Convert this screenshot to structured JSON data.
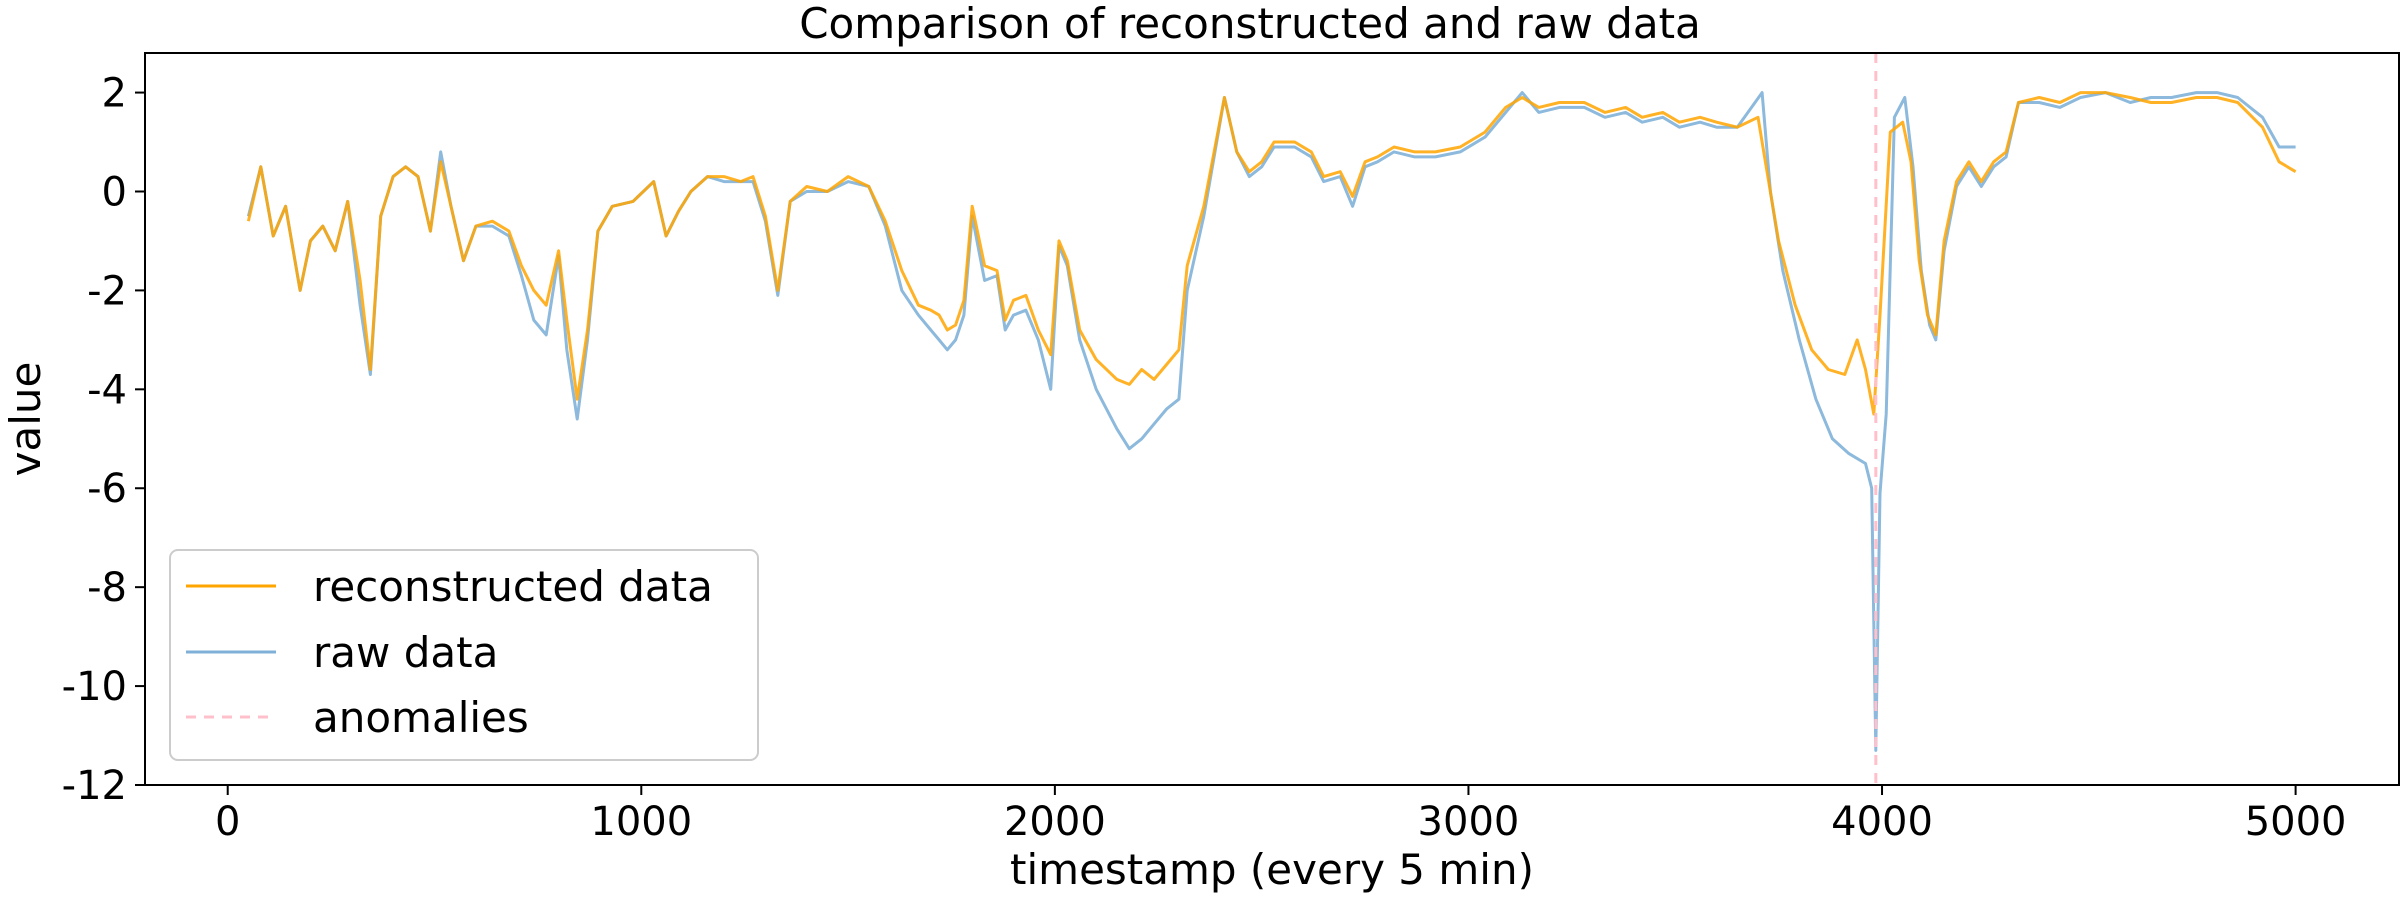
{
  "chart_data": {
    "type": "line",
    "title": "Comparison of reconstructed and raw data",
    "xlabel": "timestamp (every 5 min)",
    "ylabel": "value",
    "xlim": [
      -200,
      5250
    ],
    "ylim": [
      -12,
      2.8
    ],
    "x_ticks": [
      0,
      1000,
      2000,
      3000,
      4000,
      5000
    ],
    "x_tick_labels": [
      "0",
      "1000",
      "2000",
      "3000",
      "4000",
      "5000"
    ],
    "y_ticks": [
      2,
      0,
      -2,
      -4,
      -6,
      -8,
      -10,
      -12
    ],
    "y_tick_labels": [
      "2",
      "0",
      "-2",
      "-4",
      "-6",
      "-8",
      "-10",
      "-12"
    ],
    "grid": false,
    "legend_position": "lower-left",
    "series": [
      {
        "name": "reconstructed data",
        "color": "#ffa500",
        "style": "solid",
        "points": [
          [
            50,
            -0.6
          ],
          [
            80,
            0.5
          ],
          [
            110,
            -0.9
          ],
          [
            140,
            -0.3
          ],
          [
            175,
            -2.0
          ],
          [
            200,
            -1.0
          ],
          [
            230,
            -0.7
          ],
          [
            260,
            -1.2
          ],
          [
            290,
            -0.2
          ],
          [
            320,
            -1.8
          ],
          [
            345,
            -3.6
          ],
          [
            370,
            -0.5
          ],
          [
            400,
            0.3
          ],
          [
            430,
            0.5
          ],
          [
            460,
            0.3
          ],
          [
            490,
            -0.8
          ],
          [
            515,
            0.6
          ],
          [
            540,
            -0.3
          ],
          [
            570,
            -1.4
          ],
          [
            600,
            -0.7
          ],
          [
            640,
            -0.6
          ],
          [
            680,
            -0.8
          ],
          [
            710,
            -1.5
          ],
          [
            740,
            -2.0
          ],
          [
            770,
            -2.3
          ],
          [
            800,
            -1.2
          ],
          [
            820,
            -2.6
          ],
          [
            845,
            -4.2
          ],
          [
            870,
            -2.8
          ],
          [
            895,
            -0.8
          ],
          [
            930,
            -0.3
          ],
          [
            980,
            -0.2
          ],
          [
            1030,
            0.2
          ],
          [
            1060,
            -0.9
          ],
          [
            1090,
            -0.4
          ],
          [
            1120,
            0.0
          ],
          [
            1160,
            0.3
          ],
          [
            1200,
            0.3
          ],
          [
            1240,
            0.2
          ],
          [
            1270,
            0.3
          ],
          [
            1300,
            -0.5
          ],
          [
            1330,
            -2.0
          ],
          [
            1360,
            -0.2
          ],
          [
            1400,
            0.1
          ],
          [
            1450,
            0.0
          ],
          [
            1500,
            0.3
          ],
          [
            1550,
            0.1
          ],
          [
            1590,
            -0.6
          ],
          [
            1630,
            -1.6
          ],
          [
            1670,
            -2.3
          ],
          [
            1700,
            -2.4
          ],
          [
            1720,
            -2.5
          ],
          [
            1740,
            -2.8
          ],
          [
            1760,
            -2.7
          ],
          [
            1780,
            -2.2
          ],
          [
            1800,
            -0.3
          ],
          [
            1830,
            -1.5
          ],
          [
            1860,
            -1.6
          ],
          [
            1880,
            -2.6
          ],
          [
            1900,
            -2.2
          ],
          [
            1930,
            -2.1
          ],
          [
            1960,
            -2.8
          ],
          [
            1990,
            -3.3
          ],
          [
            2010,
            -1.0
          ],
          [
            2030,
            -1.4
          ],
          [
            2060,
            -2.8
          ],
          [
            2100,
            -3.4
          ],
          [
            2150,
            -3.8
          ],
          [
            2180,
            -3.9
          ],
          [
            2210,
            -3.6
          ],
          [
            2240,
            -3.8
          ],
          [
            2270,
            -3.5
          ],
          [
            2300,
            -3.2
          ],
          [
            2320,
            -1.5
          ],
          [
            2360,
            -0.3
          ],
          [
            2410,
            1.9
          ],
          [
            2440,
            0.8
          ],
          [
            2470,
            0.4
          ],
          [
            2500,
            0.6
          ],
          [
            2530,
            1.0
          ],
          [
            2580,
            1.0
          ],
          [
            2620,
            0.8
          ],
          [
            2650,
            0.3
          ],
          [
            2690,
            0.4
          ],
          [
            2720,
            -0.1
          ],
          [
            2750,
            0.6
          ],
          [
            2780,
            0.7
          ],
          [
            2820,
            0.9
          ],
          [
            2870,
            0.8
          ],
          [
            2920,
            0.8
          ],
          [
            2980,
            0.9
          ],
          [
            3040,
            1.2
          ],
          [
            3090,
            1.7
          ],
          [
            3130,
            1.9
          ],
          [
            3170,
            1.7
          ],
          [
            3220,
            1.8
          ],
          [
            3280,
            1.8
          ],
          [
            3330,
            1.6
          ],
          [
            3380,
            1.7
          ],
          [
            3420,
            1.5
          ],
          [
            3470,
            1.6
          ],
          [
            3510,
            1.4
          ],
          [
            3560,
            1.5
          ],
          [
            3600,
            1.4
          ],
          [
            3650,
            1.3
          ],
          [
            3700,
            1.5
          ],
          [
            3720,
            0.5
          ],
          [
            3750,
            -1.0
          ],
          [
            3790,
            -2.3
          ],
          [
            3830,
            -3.2
          ],
          [
            3870,
            -3.6
          ],
          [
            3910,
            -3.7
          ],
          [
            3940,
            -3.0
          ],
          [
            3960,
            -3.6
          ],
          [
            3980,
            -4.5
          ],
          [
            3995,
            -2.5
          ],
          [
            4020,
            1.2
          ],
          [
            4050,
            1.4
          ],
          [
            4070,
            0.6
          ],
          [
            4090,
            -1.4
          ],
          [
            4110,
            -2.5
          ],
          [
            4130,
            -2.9
          ],
          [
            4150,
            -1.0
          ],
          [
            4180,
            0.2
          ],
          [
            4210,
            0.6
          ],
          [
            4240,
            0.2
          ],
          [
            4270,
            0.6
          ],
          [
            4300,
            0.8
          ],
          [
            4330,
            1.8
          ],
          [
            4380,
            1.9
          ],
          [
            4430,
            1.8
          ],
          [
            4480,
            2.0
          ],
          [
            4540,
            2.0
          ],
          [
            4600,
            1.9
          ],
          [
            4650,
            1.8
          ],
          [
            4700,
            1.8
          ],
          [
            4760,
            1.9
          ],
          [
            4810,
            1.9
          ],
          [
            4860,
            1.8
          ],
          [
            4920,
            1.3
          ],
          [
            4960,
            0.6
          ],
          [
            5000,
            0.4
          ]
        ]
      },
      {
        "name": "raw data",
        "color": "#7fb1d8",
        "style": "solid",
        "points": [
          [
            50,
            -0.5
          ],
          [
            80,
            0.5
          ],
          [
            110,
            -0.9
          ],
          [
            140,
            -0.3
          ],
          [
            175,
            -2.0
          ],
          [
            200,
            -1.0
          ],
          [
            230,
            -0.7
          ],
          [
            260,
            -1.2
          ],
          [
            290,
            -0.2
          ],
          [
            320,
            -2.3
          ],
          [
            345,
            -3.7
          ],
          [
            370,
            -0.5
          ],
          [
            400,
            0.3
          ],
          [
            430,
            0.5
          ],
          [
            460,
            0.3
          ],
          [
            490,
            -0.8
          ],
          [
            515,
            0.8
          ],
          [
            540,
            -0.3
          ],
          [
            570,
            -1.4
          ],
          [
            600,
            -0.7
          ],
          [
            640,
            -0.7
          ],
          [
            680,
            -0.9
          ],
          [
            710,
            -1.7
          ],
          [
            740,
            -2.6
          ],
          [
            770,
            -2.9
          ],
          [
            800,
            -1.3
          ],
          [
            820,
            -3.2
          ],
          [
            845,
            -4.6
          ],
          [
            870,
            -3.0
          ],
          [
            895,
            -0.8
          ],
          [
            930,
            -0.3
          ],
          [
            980,
            -0.2
          ],
          [
            1030,
            0.2
          ],
          [
            1060,
            -0.9
          ],
          [
            1090,
            -0.4
          ],
          [
            1120,
            0.0
          ],
          [
            1160,
            0.3
          ],
          [
            1200,
            0.2
          ],
          [
            1240,
            0.2
          ],
          [
            1270,
            0.2
          ],
          [
            1300,
            -0.6
          ],
          [
            1330,
            -2.1
          ],
          [
            1360,
            -0.2
          ],
          [
            1400,
            0.0
          ],
          [
            1450,
            0.0
          ],
          [
            1500,
            0.2
          ],
          [
            1550,
            0.1
          ],
          [
            1590,
            -0.7
          ],
          [
            1630,
            -2.0
          ],
          [
            1670,
            -2.5
          ],
          [
            1700,
            -2.8
          ],
          [
            1720,
            -3.0
          ],
          [
            1740,
            -3.2
          ],
          [
            1760,
            -3.0
          ],
          [
            1780,
            -2.5
          ],
          [
            1800,
            -0.5
          ],
          [
            1830,
            -1.8
          ],
          [
            1860,
            -1.7
          ],
          [
            1880,
            -2.8
          ],
          [
            1900,
            -2.5
          ],
          [
            1930,
            -2.4
          ],
          [
            1960,
            -3.0
          ],
          [
            1990,
            -4.0
          ],
          [
            2010,
            -1.1
          ],
          [
            2030,
            -1.5
          ],
          [
            2060,
            -3.0
          ],
          [
            2100,
            -4.0
          ],
          [
            2150,
            -4.8
          ],
          [
            2180,
            -5.2
          ],
          [
            2210,
            -5.0
          ],
          [
            2240,
            -4.7
          ],
          [
            2270,
            -4.4
          ],
          [
            2300,
            -4.2
          ],
          [
            2320,
            -2.0
          ],
          [
            2360,
            -0.5
          ],
          [
            2410,
            1.9
          ],
          [
            2440,
            0.8
          ],
          [
            2470,
            0.3
          ],
          [
            2500,
            0.5
          ],
          [
            2530,
            0.9
          ],
          [
            2580,
            0.9
          ],
          [
            2620,
            0.7
          ],
          [
            2650,
            0.2
          ],
          [
            2690,
            0.3
          ],
          [
            2720,
            -0.3
          ],
          [
            2750,
            0.5
          ],
          [
            2780,
            0.6
          ],
          [
            2820,
            0.8
          ],
          [
            2870,
            0.7
          ],
          [
            2920,
            0.7
          ],
          [
            2980,
            0.8
          ],
          [
            3040,
            1.1
          ],
          [
            3090,
            1.6
          ],
          [
            3130,
            2.0
          ],
          [
            3170,
            1.6
          ],
          [
            3220,
            1.7
          ],
          [
            3280,
            1.7
          ],
          [
            3330,
            1.5
          ],
          [
            3380,
            1.6
          ],
          [
            3420,
            1.4
          ],
          [
            3470,
            1.5
          ],
          [
            3510,
            1.3
          ],
          [
            3560,
            1.4
          ],
          [
            3600,
            1.3
          ],
          [
            3650,
            1.3
          ],
          [
            3710,
            2.0
          ],
          [
            3730,
            0.0
          ],
          [
            3760,
            -1.6
          ],
          [
            3800,
            -3.0
          ],
          [
            3840,
            -4.2
          ],
          [
            3880,
            -5.0
          ],
          [
            3920,
            -5.3
          ],
          [
            3960,
            -5.5
          ],
          [
            3975,
            -6.0
          ],
          [
            3985,
            -11.3
          ],
          [
            3995,
            -6.1
          ],
          [
            4010,
            -4.5
          ],
          [
            4030,
            1.5
          ],
          [
            4055,
            1.9
          ],
          [
            4075,
            0.5
          ],
          [
            4095,
            -1.6
          ],
          [
            4115,
            -2.7
          ],
          [
            4130,
            -3.0
          ],
          [
            4150,
            -1.2
          ],
          [
            4180,
            0.1
          ],
          [
            4210,
            0.5
          ],
          [
            4240,
            0.1
          ],
          [
            4270,
            0.5
          ],
          [
            4300,
            0.7
          ],
          [
            4330,
            1.8
          ],
          [
            4380,
            1.8
          ],
          [
            4430,
            1.7
          ],
          [
            4480,
            1.9
          ],
          [
            4540,
            2.0
          ],
          [
            4600,
            1.8
          ],
          [
            4650,
            1.9
          ],
          [
            4700,
            1.9
          ],
          [
            4760,
            2.0
          ],
          [
            4810,
            2.0
          ],
          [
            4860,
            1.9
          ],
          [
            4920,
            1.5
          ],
          [
            4960,
            0.9
          ],
          [
            5000,
            0.9
          ]
        ]
      }
    ],
    "anomalies": {
      "name": "anomalies",
      "color": "#ffc0cb",
      "style": "dashed",
      "x": [
        3985
      ]
    }
  }
}
